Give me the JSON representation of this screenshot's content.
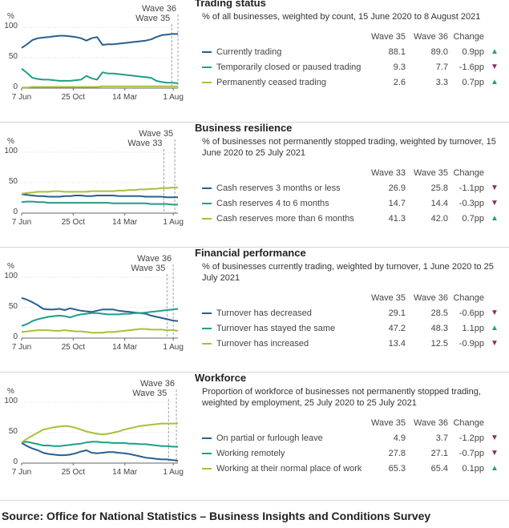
{
  "colors": {
    "dark": "#27608e",
    "teal": "#1f9e89",
    "lime": "#a7c13a",
    "up": "#2a9d7e",
    "down": "#8b2c6a",
    "grid": "#999999",
    "wave": "#a0a0a0"
  },
  "axis": {
    "pct": "%",
    "x_ticks": [
      "7 Jun",
      "25 Oct",
      "14 Mar",
      "1 Aug"
    ],
    "y_ticks": [
      "100",
      "50",
      "0"
    ]
  },
  "chart_data": [
    {
      "type": "line",
      "title": "Trading status",
      "subtitle": "% of all businesses, weighted by count, 15 June 2020 to 8 August 2021",
      "ylabel": "%",
      "ylim": [
        0,
        100
      ],
      "x_ticks": [
        "7 Jun",
        "25 Oct",
        "14 Mar",
        "1 Aug"
      ],
      "wave_markers": [
        {
          "label": "Wave 36",
          "x": 1.0
        },
        {
          "label": "Wave 35",
          "x": 0.96
        }
      ],
      "columns": [
        "Wave 35",
        "Wave 36",
        "Change"
      ],
      "series": [
        {
          "name": "Currently trading",
          "color": "#27608e",
          "wave_a": "88.1",
          "wave_b": "89.0",
          "change": "0.9pp",
          "direction": "up",
          "values": [
            66,
            72,
            79,
            82,
            83,
            84,
            85,
            86,
            86,
            85,
            84,
            82,
            78,
            82,
            84,
            71,
            72,
            72,
            73,
            74,
            75,
            76,
            77,
            78,
            80,
            84,
            87,
            88,
            89,
            89
          ]
        },
        {
          "name": "Temporarily closed or paused trading",
          "color": "#1f9e89",
          "wave_a": "9.3",
          "wave_b": "7.7",
          "change": "-1.6pp",
          "direction": "down",
          "values": [
            32,
            25,
            17,
            15,
            14,
            14,
            13,
            12,
            12,
            12,
            13,
            14,
            20,
            16,
            14,
            26,
            24,
            24,
            23,
            22,
            21,
            20,
            19,
            18,
            17,
            12,
            10,
            9,
            9,
            8
          ]
        },
        {
          "name": "Permanently ceased trading",
          "color": "#a7c13a",
          "wave_a": "2.6",
          "wave_b": "3.3",
          "change": "0.7pp",
          "direction": "up",
          "values": [
            1,
            1,
            2,
            2,
            2,
            2,
            2,
            2,
            2,
            2,
            2,
            2,
            2,
            2,
            2,
            3,
            3,
            3,
            3,
            3,
            3,
            3,
            3,
            3,
            3,
            3,
            3,
            3,
            3,
            3
          ]
        }
      ]
    },
    {
      "type": "line",
      "title": "Business resilience",
      "subtitle": "% of businesses not permanently stopped trading, weighted by turnover, 15 June 2020 to 25 July 2021",
      "ylabel": "%",
      "ylim": [
        0,
        100
      ],
      "x_ticks": [
        "7 Jun",
        "25 Oct",
        "14 Mar",
        "1 Aug"
      ],
      "wave_markers": [
        {
          "label": "Wave 35",
          "x": 0.98
        },
        {
          "label": "Wave 33",
          "x": 0.91
        }
      ],
      "columns": [
        "Wave 33",
        "Wave 35",
        "Change"
      ],
      "series": [
        {
          "name": "Cash reserves 3 months or less",
          "color": "#27608e",
          "wave_a": "26.9",
          "wave_b": "25.8",
          "change": "-1.1pp",
          "direction": "down",
          "values": [
            31,
            30,
            29,
            28,
            28,
            27,
            27,
            27,
            28,
            28,
            29,
            29,
            28,
            28,
            29,
            29,
            29,
            29,
            28,
            28,
            28,
            28,
            28,
            27,
            27,
            27,
            27,
            26,
            26,
            26
          ]
        },
        {
          "name": "Cash reserves 4 to 6 months",
          "color": "#1f9e89",
          "wave_a": "14.7",
          "wave_b": "14.4",
          "change": "-0.3pp",
          "direction": "down",
          "values": [
            18,
            19,
            19,
            18,
            18,
            17,
            17,
            17,
            17,
            17,
            17,
            17,
            17,
            17,
            17,
            17,
            17,
            16,
            16,
            16,
            16,
            16,
            16,
            16,
            15,
            15,
            15,
            15,
            14,
            14
          ]
        },
        {
          "name": "Cash reserves more than 6 months",
          "color": "#a7c13a",
          "wave_a": "41.3",
          "wave_b": "42.0",
          "change": "0.7pp",
          "direction": "up",
          "values": [
            32,
            33,
            34,
            35,
            35,
            35,
            36,
            36,
            35,
            35,
            35,
            35,
            35,
            36,
            36,
            36,
            36,
            36,
            37,
            37,
            38,
            38,
            39,
            39,
            40,
            40,
            41,
            41,
            42,
            42
          ]
        }
      ]
    },
    {
      "type": "line",
      "title": "Financial performance",
      "subtitle": "% of businesses currently trading, weighted by turnover, 1 June 2020 to 25 July 2021",
      "ylabel": "%",
      "ylim": [
        0,
        100
      ],
      "x_ticks": [
        "7 Jun",
        "25 Oct",
        "14 Mar",
        "1 Aug"
      ],
      "wave_markers": [
        {
          "label": "Wave 36",
          "x": 0.97
        },
        {
          "label": "Wave 35",
          "x": 0.93
        }
      ],
      "columns": [
        "Wave 35",
        "Wave 36",
        "Change"
      ],
      "series": [
        {
          "name": "Turnover has decreased",
          "color": "#27608e",
          "wave_a": "29.1",
          "wave_b": "28.5",
          "change": "-0.6pp",
          "direction": "down",
          "values": [
            66,
            63,
            59,
            54,
            48,
            47,
            47,
            48,
            46,
            49,
            47,
            45,
            44,
            43,
            45,
            47,
            47,
            47,
            45,
            44,
            43,
            42,
            41,
            40,
            37,
            35,
            33,
            31,
            29,
            28
          ]
        },
        {
          "name": "Turnover has stayed the same",
          "color": "#1f9e89",
          "wave_a": "47.2",
          "wave_b": "48.3",
          "change": "1.1pp",
          "direction": "up",
          "values": [
            20,
            23,
            28,
            31,
            33,
            35,
            36,
            37,
            36,
            34,
            37,
            39,
            40,
            41,
            41,
            40,
            39,
            39,
            39,
            40,
            40,
            41,
            41,
            42,
            43,
            44,
            45,
            46,
            47,
            48
          ]
        },
        {
          "name": "Turnover has increased",
          "color": "#a7c13a",
          "wave_a": "13.4",
          "wave_b": "12.5",
          "change": "-0.9pp",
          "direction": "down",
          "values": [
            10,
            11,
            12,
            13,
            13,
            13,
            12,
            12,
            13,
            12,
            11,
            11,
            10,
            9,
            9,
            9,
            10,
            10,
            11,
            12,
            13,
            14,
            15,
            15,
            14,
            14,
            14,
            13,
            13,
            12
          ]
        }
      ]
    },
    {
      "type": "line",
      "title": "Workforce",
      "subtitle": "Proportion of workforce of businesses not permanently stopped trading, weighted by employment, 25 July 2020 to 25 July 2021",
      "ylabel": "%",
      "ylim": [
        0,
        100
      ],
      "x_ticks": [
        "7 Jun",
        "25 Oct",
        "14 Mar",
        "1 Aug"
      ],
      "wave_markers": [
        {
          "label": "Wave 36",
          "x": 0.99
        },
        {
          "label": "Wave 35",
          "x": 0.94
        }
      ],
      "columns": [
        "Wave 35",
        "Wave 36",
        "Change"
      ],
      "series": [
        {
          "name": "On partial or furlough leave",
          "color": "#27608e",
          "wave_a": "4.9",
          "wave_b": "3.7",
          "change": "-1.2pp",
          "direction": "down",
          "values": [
            33,
            28,
            24,
            21,
            17,
            15,
            14,
            13,
            13,
            14,
            16,
            19,
            21,
            17,
            16,
            17,
            18,
            18,
            17,
            16,
            15,
            13,
            11,
            9,
            8,
            7,
            6,
            6,
            5,
            4
          ]
        },
        {
          "name": "Working remotely",
          "color": "#1f9e89",
          "wave_a": "27.8",
          "wave_b": "27.1",
          "change": "-0.7pp",
          "direction": "down",
          "values": [
            34,
            35,
            33,
            31,
            29,
            29,
            28,
            28,
            29,
            30,
            31,
            32,
            34,
            35,
            35,
            34,
            34,
            33,
            33,
            33,
            32,
            32,
            31,
            31,
            30,
            29,
            28,
            28,
            27,
            27
          ]
        },
        {
          "name": "Working at their normal place of work",
          "color": "#a7c13a",
          "wave_a": "65.3",
          "wave_b": "65.4",
          "change": "0.1pp",
          "direction": "up",
          "values": [
            34,
            40,
            45,
            50,
            55,
            57,
            59,
            60,
            61,
            60,
            58,
            55,
            52,
            50,
            48,
            47,
            48,
            50,
            52,
            55,
            57,
            59,
            61,
            62,
            63,
            64,
            65,
            65,
            65,
            65
          ]
        }
      ]
    }
  ],
  "source": "Source: Office for National Statistics – Business Insights and Conditions Survey"
}
